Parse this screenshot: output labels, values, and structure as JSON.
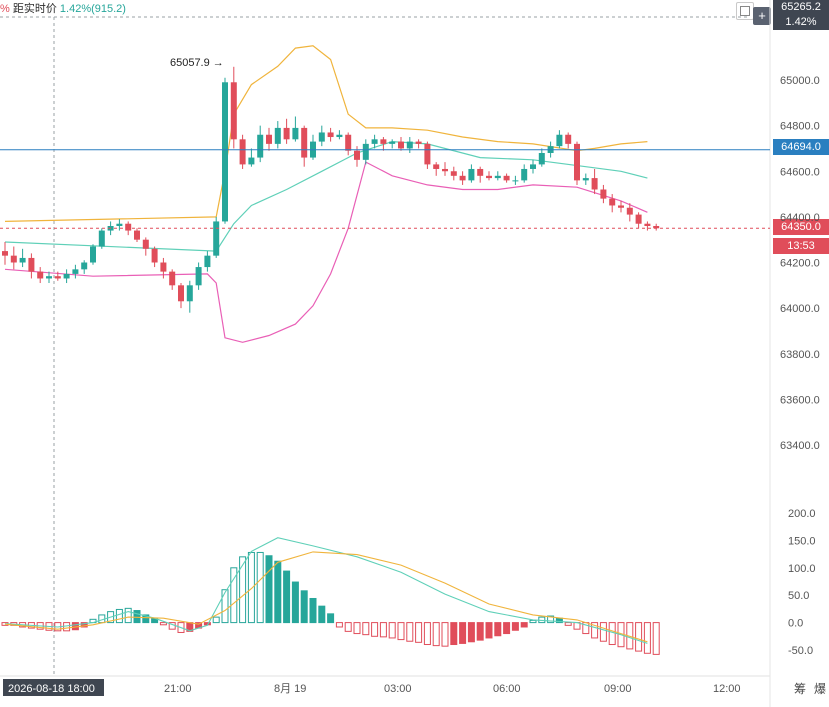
{
  "header": {
    "prefix": "%",
    "label": "距实时价",
    "percent": "1.42%",
    "points": "(915.2)"
  },
  "toolbar": {
    "checkbox_icon": "checkbox-icon",
    "plus_icon": "plus-icon",
    "plus_label": "+"
  },
  "price_tags": {
    "top_price": "65265.2",
    "top_pct": "1.42%",
    "ref_line": "64694.0",
    "last_price": "64350.0",
    "countdown": "13:53"
  },
  "annotations": {
    "high_label": "65057.9",
    "high_arrow": "→"
  },
  "colors": {
    "up": "#26a69a",
    "down": "#e04d5a",
    "boll_upper": "#f0b43c",
    "boll_mid": "#5fd0b8",
    "boll_lower": "#e95fb6",
    "ref_line": "#2a7fc0",
    "tag_dark": "#3f4651"
  },
  "x_axis": {
    "cursor_label": "2026-08-18 18:00",
    "ticks": [
      "21:00",
      "8月 19",
      "03:00",
      "06:00",
      "09:00",
      "12:00"
    ],
    "right_labels": [
      "筹",
      "爆"
    ]
  },
  "chart_data": [
    {
      "type": "candlestick",
      "y_ticks": [
        65000,
        64800,
        64600,
        64400,
        64200,
        64000,
        63800,
        63600,
        63400
      ],
      "y_tick_labels": [
        "65000.0",
        "64800.0",
        "64600.0",
        "64400.0",
        "64200.0",
        "64000.0",
        "63800.0",
        "63600.0",
        "63400.0"
      ],
      "ylim": [
        63150,
        65350
      ],
      "reference_line": 64694.0,
      "last_price": 64350.0,
      "candles": [
        [
          64250,
          64230,
          64290,
          64190
        ],
        [
          64230,
          64200,
          64270,
          64170
        ],
        [
          64200,
          64220,
          64260,
          64180
        ],
        [
          64220,
          64160,
          64240,
          64130
        ],
        [
          64160,
          64130,
          64180,
          64110
        ],
        [
          64130,
          64140,
          64160,
          64110
        ],
        [
          64140,
          64130,
          64160,
          64120
        ],
        [
          64130,
          64150,
          64170,
          64110
        ],
        [
          64150,
          64170,
          64190,
          64130
        ],
        [
          64170,
          64200,
          64210,
          64150
        ],
        [
          64200,
          64270,
          64280,
          64190
        ],
        [
          64270,
          64340,
          64350,
          64260
        ],
        [
          64340,
          64360,
          64380,
          64320
        ],
        [
          64360,
          64370,
          64390,
          64340
        ],
        [
          64370,
          64340,
          64380,
          64320
        ],
        [
          64340,
          64300,
          64350,
          64290
        ],
        [
          64300,
          64260,
          64310,
          64230
        ],
        [
          64260,
          64200,
          64270,
          64180
        ],
        [
          64200,
          64160,
          64220,
          64130
        ],
        [
          64160,
          64100,
          64170,
          64080
        ],
        [
          64100,
          64030,
          64110,
          64000
        ],
        [
          64030,
          64100,
          64120,
          63980
        ],
        [
          64100,
          64180,
          64200,
          64080
        ],
        [
          64180,
          64230,
          64250,
          64160
        ],
        [
          64230,
          64380,
          64400,
          64220
        ],
        [
          64380,
          64990,
          65010,
          64370
        ],
        [
          64990,
          64740,
          65057.9,
          64700
        ],
        [
          64740,
          64630,
          64760,
          64610
        ],
        [
          64630,
          64660,
          64700,
          64620
        ],
        [
          64660,
          64760,
          64800,
          64640
        ],
        [
          64760,
          64720,
          64790,
          64690
        ],
        [
          64720,
          64790,
          64820,
          64700
        ],
        [
          64790,
          64740,
          64830,
          64720
        ],
        [
          64740,
          64790,
          64840,
          64730
        ],
        [
          64790,
          64660,
          64800,
          64620
        ],
        [
          64660,
          64730,
          64760,
          64650
        ],
        [
          64730,
          64770,
          64800,
          64710
        ],
        [
          64770,
          64750,
          64790,
          64730
        ],
        [
          64750,
          64760,
          64780,
          64740
        ],
        [
          64760,
          64690,
          64770,
          64670
        ],
        [
          64690,
          64650,
          64710,
          64620
        ],
        [
          64650,
          64720,
          64740,
          64630
        ],
        [
          64720,
          64740,
          64760,
          64700
        ],
        [
          64740,
          64720,
          64750,
          64690
        ],
        [
          64720,
          64730,
          64740,
          64700
        ],
        [
          64730,
          64700,
          64750,
          64690
        ],
        [
          64700,
          64730,
          64750,
          64680
        ],
        [
          64730,
          64720,
          64740,
          64700
        ],
        [
          64720,
          64630,
          64730,
          64610
        ],
        [
          64630,
          64610,
          64640,
          64580
        ],
        [
          64610,
          64600,
          64640,
          64580
        ],
        [
          64600,
          64580,
          64620,
          64560
        ],
        [
          64580,
          64560,
          64600,
          64540
        ],
        [
          64560,
          64610,
          64630,
          64550
        ],
        [
          64610,
          64580,
          64620,
          64550
        ],
        [
          64580,
          64570,
          64600,
          64560
        ],
        [
          64570,
          64580,
          64600,
          64560
        ],
        [
          64580,
          64560,
          64590,
          64550
        ],
        [
          64560,
          64560,
          64580,
          64540
        ],
        [
          64560,
          64610,
          64630,
          64550
        ],
        [
          64610,
          64630,
          64650,
          64590
        ],
        [
          64630,
          64680,
          64700,
          64620
        ],
        [
          64680,
          64710,
          64730,
          64660
        ],
        [
          64710,
          64760,
          64780,
          64700
        ],
        [
          64760,
          64720,
          64770,
          64700
        ],
        [
          64720,
          64560,
          64730,
          64540
        ],
        [
          64560,
          64570,
          64590,
          64540
        ],
        [
          64570,
          64520,
          64610,
          64500
        ],
        [
          64520,
          64480,
          64540,
          64460
        ],
        [
          64480,
          64450,
          64500,
          64420
        ],
        [
          64450,
          64440,
          64470,
          64420
        ],
        [
          64440,
          64410,
          64460,
          64380
        ],
        [
          64410,
          64370,
          64420,
          64350
        ],
        [
          64370,
          64360,
          64380,
          64340
        ],
        [
          64360,
          64350,
          64370,
          64340
        ]
      ],
      "boll_upper": [
        [
          0,
          64380
        ],
        [
          24,
          64400
        ],
        [
          25,
          64600
        ],
        [
          26,
          64850
        ],
        [
          28,
          64980
        ],
        [
          31,
          65060
        ],
        [
          33,
          65140
        ],
        [
          35,
          65150
        ],
        [
          37,
          65090
        ],
        [
          39,
          64850
        ],
        [
          41,
          64790
        ],
        [
          44,
          64790
        ],
        [
          48,
          64780
        ],
        [
          52,
          64750
        ],
        [
          56,
          64730
        ],
        [
          60,
          64720
        ],
        [
          65,
          64690
        ],
        [
          67,
          64700
        ],
        [
          70,
          64720
        ],
        [
          73,
          64730
        ]
      ],
      "boll_mid": [
        [
          0,
          64290
        ],
        [
          24,
          64250
        ],
        [
          26,
          64370
        ],
        [
          28,
          64450
        ],
        [
          32,
          64520
        ],
        [
          36,
          64600
        ],
        [
          40,
          64680
        ],
        [
          44,
          64730
        ],
        [
          48,
          64720
        ],
        [
          54,
          64660
        ],
        [
          60,
          64650
        ],
        [
          66,
          64620
        ],
        [
          70,
          64600
        ],
        [
          73,
          64570
        ]
      ],
      "boll_lower": [
        [
          0,
          64170
        ],
        [
          10,
          64140
        ],
        [
          23,
          64150
        ],
        [
          24,
          64110
        ],
        [
          25,
          63870
        ],
        [
          27,
          63850
        ],
        [
          30,
          63880
        ],
        [
          33,
          63930
        ],
        [
          35,
          64010
        ],
        [
          37,
          64150
        ],
        [
          39,
          64350
        ],
        [
          41,
          64640
        ],
        [
          44,
          64580
        ],
        [
          48,
          64540
        ],
        [
          52,
          64520
        ],
        [
          56,
          64520
        ],
        [
          60,
          64540
        ],
        [
          65,
          64530
        ],
        [
          70,
          64470
        ],
        [
          73,
          64420
        ]
      ]
    },
    {
      "type": "macd",
      "y_ticks": [
        200,
        150,
        100,
        50,
        0,
        -50
      ],
      "y_tick_labels": [
        "200.0",
        "150.0",
        "100.0",
        "50.0",
        "0.0",
        "-50.0"
      ],
      "ylim": [
        -100,
        200
      ],
      "histogram": [
        -5,
        -5,
        -8,
        -10,
        -12,
        -14,
        -15,
        -15,
        -13,
        -8,
        6,
        14,
        20,
        24,
        26,
        22,
        14,
        8,
        -4,
        -12,
        -18,
        -16,
        -10,
        -4,
        10,
        60,
        100,
        120,
        128,
        128,
        122,
        112,
        94,
        74,
        58,
        44,
        30,
        16,
        -8,
        -16,
        -20,
        -22,
        -25,
        -26,
        -28,
        -31,
        -34,
        -36,
        -40,
        -42,
        -43,
        -40,
        -38,
        -35,
        -32,
        -28,
        -24,
        -20,
        -14,
        -8,
        4,
        10,
        12,
        8,
        -5,
        -12,
        -20,
        -28,
        -34,
        -40,
        -44,
        -48,
        -52,
        -56,
        -58
      ],
      "dif": [
        [
          0,
          -2
        ],
        [
          6,
          -8
        ],
        [
          10,
          0
        ],
        [
          14,
          20
        ],
        [
          17,
          8
        ],
        [
          21,
          -15
        ],
        [
          23,
          -5
        ],
        [
          25,
          55
        ],
        [
          28,
          130
        ],
        [
          31,
          155
        ],
        [
          35,
          140
        ],
        [
          40,
          120
        ],
        [
          45,
          92
        ],
        [
          50,
          52
        ],
        [
          55,
          20
        ],
        [
          60,
          5
        ],
        [
          65,
          0
        ],
        [
          70,
          -22
        ],
        [
          73,
          -38
        ]
      ],
      "dea": [
        [
          0,
          -3
        ],
        [
          6,
          -12
        ],
        [
          10,
          -4
        ],
        [
          14,
          10
        ],
        [
          18,
          8
        ],
        [
          22,
          -3
        ],
        [
          25,
          22
        ],
        [
          28,
          62
        ],
        [
          31,
          110
        ],
        [
          35,
          129
        ],
        [
          40,
          124
        ],
        [
          45,
          105
        ],
        [
          50,
          72
        ],
        [
          55,
          34
        ],
        [
          60,
          14
        ],
        [
          65,
          5
        ],
        [
          70,
          -20
        ],
        [
          73,
          -35
        ]
      ]
    }
  ]
}
